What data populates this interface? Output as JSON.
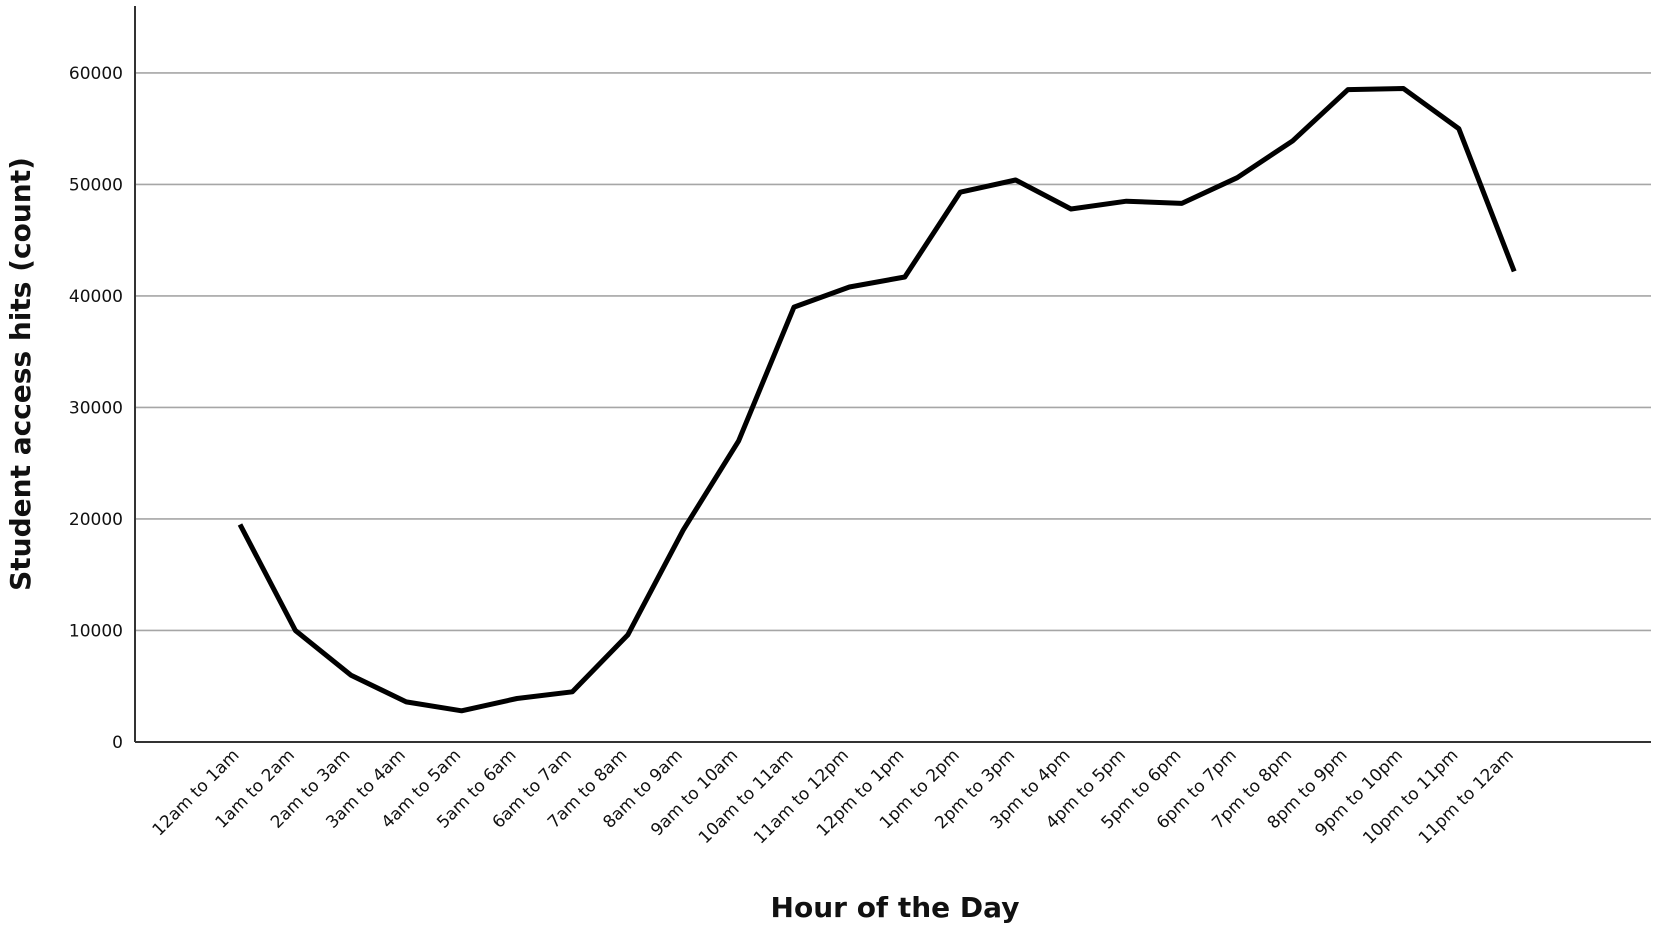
{
  "chart_data": {
    "type": "line",
    "xlabel": "Hour of the Day",
    "ylabel": "Student access hits (count)",
    "ylim": [
      0,
      66000
    ],
    "yticks": [
      0,
      10000,
      20000,
      30000,
      40000,
      50000,
      60000
    ],
    "ytick_labels": [
      "0",
      "10000",
      "20000",
      "30000",
      "40000",
      "50000",
      "60000"
    ],
    "grid": "horizontal",
    "categories": [
      "12am to 1am",
      "1am to 2am",
      "2am to 3am",
      "3am to 4am",
      "4am to 5am",
      "5am to 6am",
      "6am to 7am",
      "7am to 8am",
      "8am to 9am",
      "9am to 10am",
      "10am to 11am",
      "11am to 12pm",
      "12pm to 1pm",
      "1pm to 2pm",
      "2pm to 3pm",
      "3pm to 4pm",
      "4pm to 5pm",
      "5pm to 6pm",
      "6pm to 7pm",
      "7pm to 8pm",
      "8pm to 9pm",
      "9pm to 10pm",
      "10pm to 11pm",
      "11pm to 12am"
    ],
    "series": [
      {
        "values": [
          19500,
          10000,
          6000,
          3600,
          2800,
          3900,
          4500,
          9600,
          19000,
          27000,
          39000,
          40800,
          41700,
          49300,
          50400,
          47800,
          48500,
          48300,
          50600,
          53900,
          58500,
          58600,
          55000,
          42200
        ]
      }
    ],
    "colors": {
      "line": "#000000",
      "grid": "#a6a6a6",
      "axis": "#333333"
    }
  }
}
